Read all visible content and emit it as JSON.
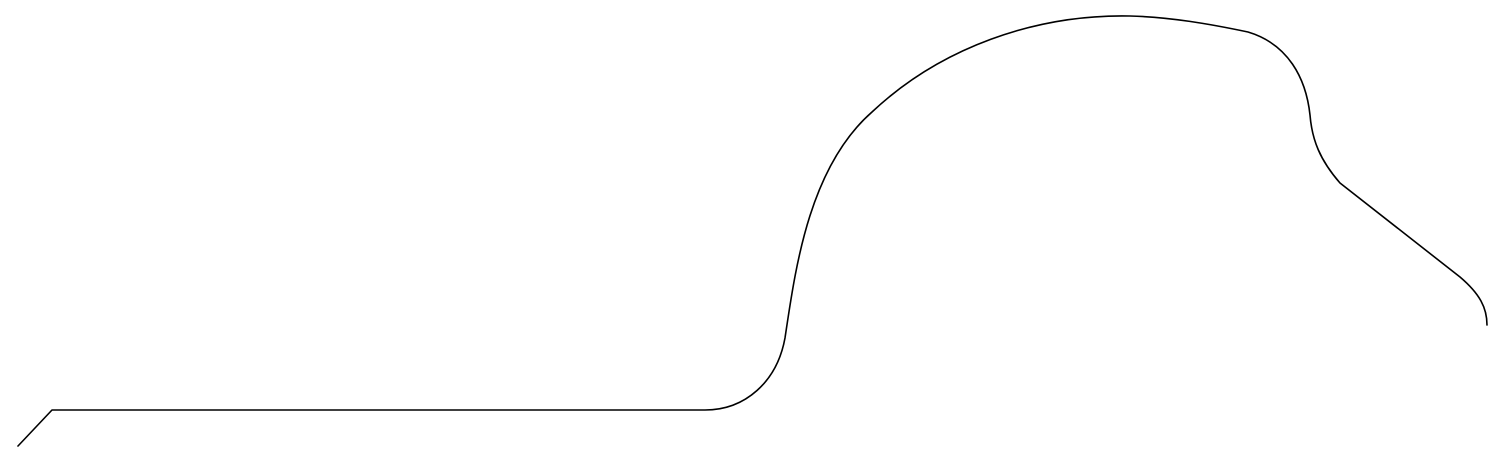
{
  "drawing": {
    "background_color": "#ffffff",
    "stroke_color": "#000000",
    "shape": "single continuous profile outline"
  }
}
